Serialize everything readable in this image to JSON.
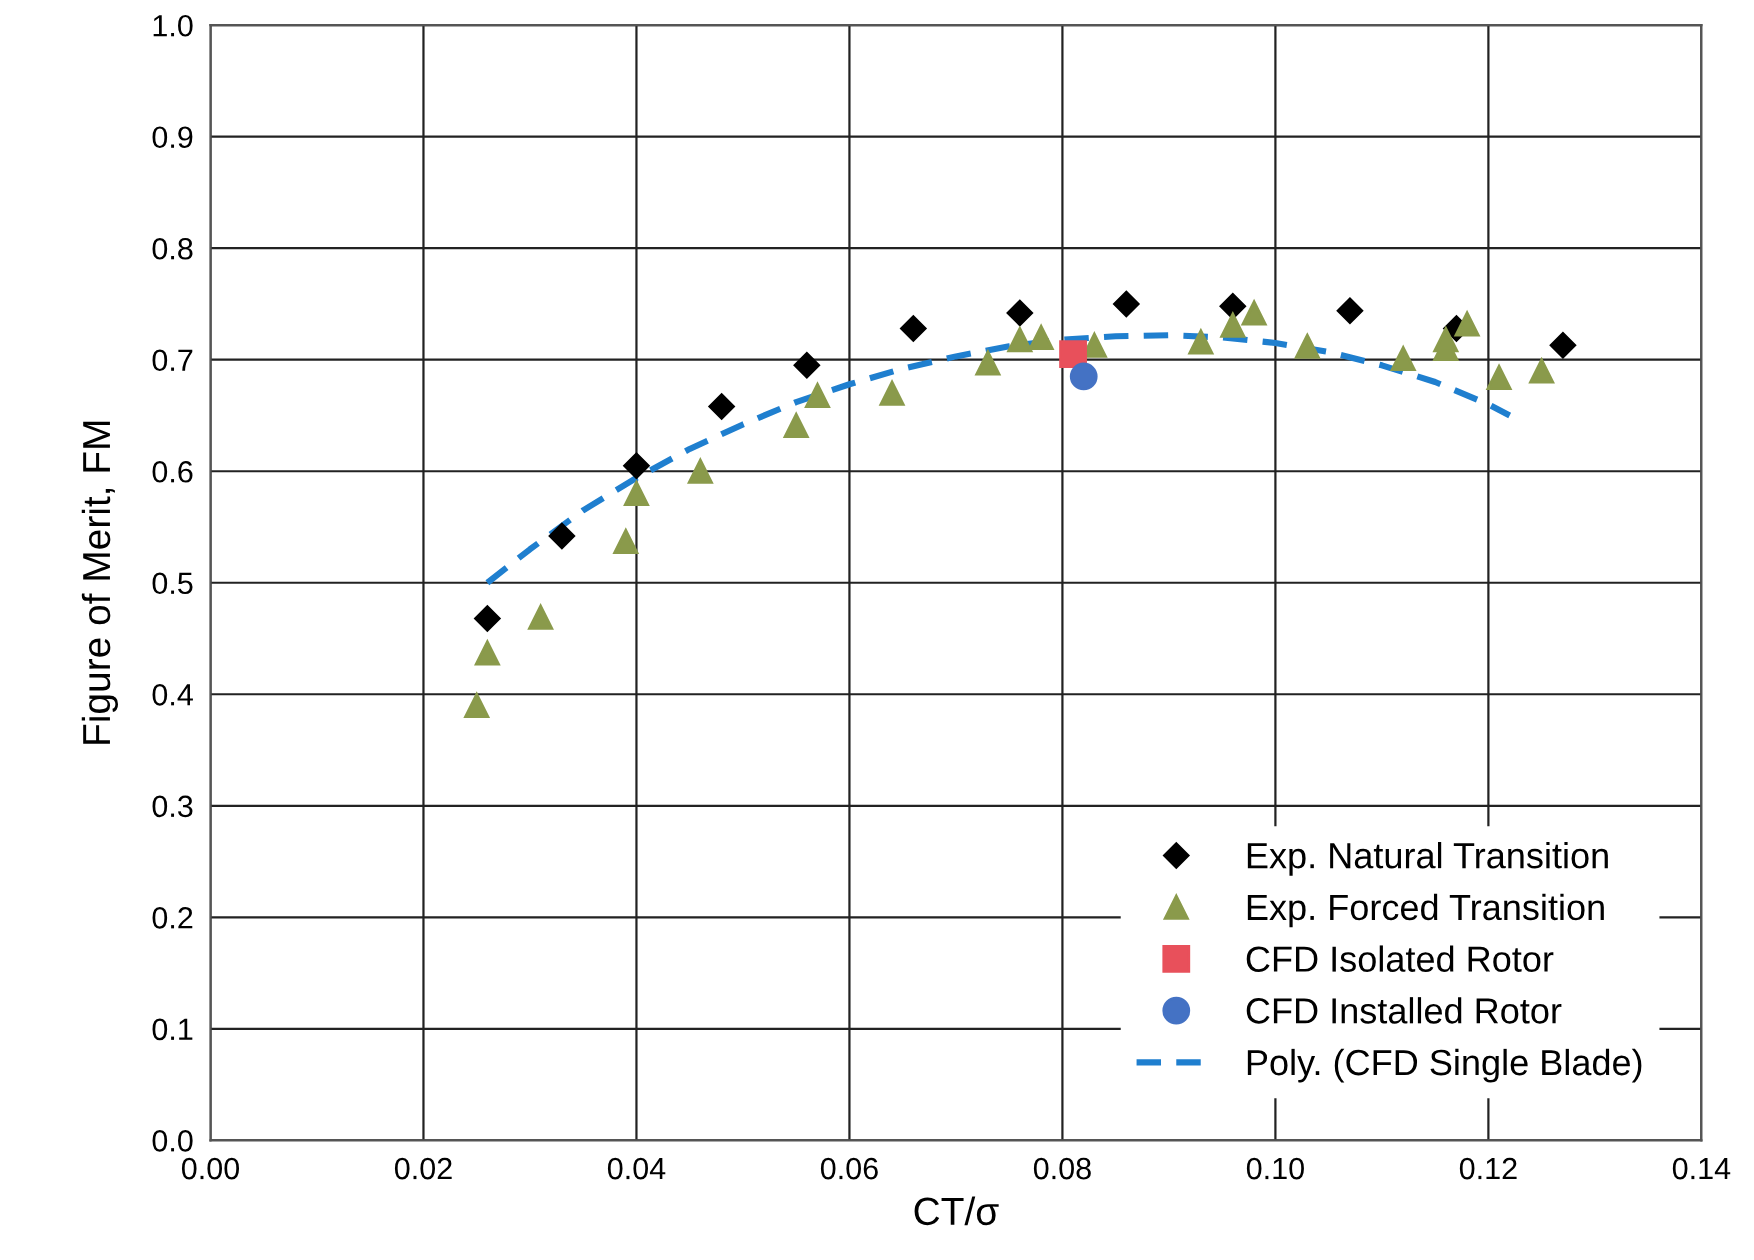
{
  "chart_data": {
    "type": "scatter",
    "xlabel": "CT/σ",
    "ylabel": "Figure of Merit, FM",
    "xlim": [
      0,
      0.14
    ],
    "xticks": [
      {
        "value": 0,
        "label": "0.00"
      },
      {
        "value": 0.02,
        "label": "0.02"
      },
      {
        "value": 0.04,
        "label": "0.04"
      },
      {
        "value": 0.06,
        "label": "0.06"
      },
      {
        "value": 0.08,
        "label": "0.08"
      },
      {
        "value": 0.1,
        "label": "0.10"
      },
      {
        "value": 0.12,
        "label": "0.12"
      },
      {
        "value": 0.14,
        "label": "0.14"
      }
    ],
    "ylim": [
      0,
      1
    ],
    "yticks": [
      {
        "value": 0,
        "label": "0.0"
      },
      0.1,
      0.2,
      0.3,
      0.4,
      0.5,
      0.6,
      0.7,
      0.8,
      0.9,
      {
        "value": 1,
        "label": "1.0"
      }
    ],
    "grid": true,
    "legend": "bottom right",
    "series": [
      {
        "name": "Exp. Natural Transition",
        "marker": "diamond",
        "color": "#000000",
        "x": [
          0.026,
          0.033,
          0.04,
          0.048,
          0.056,
          0.066,
          0.076,
          0.086,
          0.096,
          0.107,
          0.117,
          0.127
        ],
        "values": [
          0.468,
          0.542,
          0.605,
          0.658,
          0.695,
          0.728,
          0.742,
          0.75,
          0.748,
          0.744,
          0.728,
          0.713
        ]
      },
      {
        "name": "Exp. Forced Transition",
        "marker": "triangle",
        "color": "#8a9a4b",
        "x": [
          0.025,
          0.026,
          0.031,
          0.039,
          0.04,
          0.046,
          0.055,
          0.057,
          0.064,
          0.073,
          0.076,
          0.078,
          0.083,
          0.093,
          0.096,
          0.098,
          0.103,
          0.112,
          0.116,
          0.116,
          0.118,
          0.121,
          0.125
        ],
        "values": [
          0.39,
          0.437,
          0.469,
          0.537,
          0.58,
          0.6,
          0.641,
          0.668,
          0.67,
          0.697,
          0.718,
          0.72,
          0.713,
          0.716,
          0.731,
          0.742,
          0.712,
          0.701,
          0.71,
          0.718,
          0.732,
          0.684,
          0.69
        ]
      },
      {
        "name": "CFD Isolated Rotor",
        "marker": "square",
        "color": "#e8505b",
        "x": [
          0.081
        ],
        "values": [
          0.705
        ]
      },
      {
        "name": "CFD Installed Rotor",
        "marker": "circle",
        "color": "#4472c4",
        "x": [
          0.082
        ],
        "values": [
          0.685
        ]
      },
      {
        "name": "Poly. (CFD Single Blade)",
        "type": "line",
        "marker": "none",
        "line_style": "dashed",
        "color": "#1f7fcf",
        "x": [
          0.026,
          0.03,
          0.035,
          0.04,
          0.045,
          0.05,
          0.055,
          0.06,
          0.065,
          0.07,
          0.075,
          0.08,
          0.085,
          0.09,
          0.095,
          0.1,
          0.105,
          0.11,
          0.115,
          0.12,
          0.122
        ],
        "values": [
          0.5,
          0.53,
          0.565,
          0.594,
          0.62,
          0.642,
          0.662,
          0.678,
          0.692,
          0.703,
          0.712,
          0.718,
          0.721,
          0.722,
          0.72,
          0.715,
          0.707,
          0.695,
          0.68,
          0.66,
          0.65
        ]
      }
    ]
  }
}
